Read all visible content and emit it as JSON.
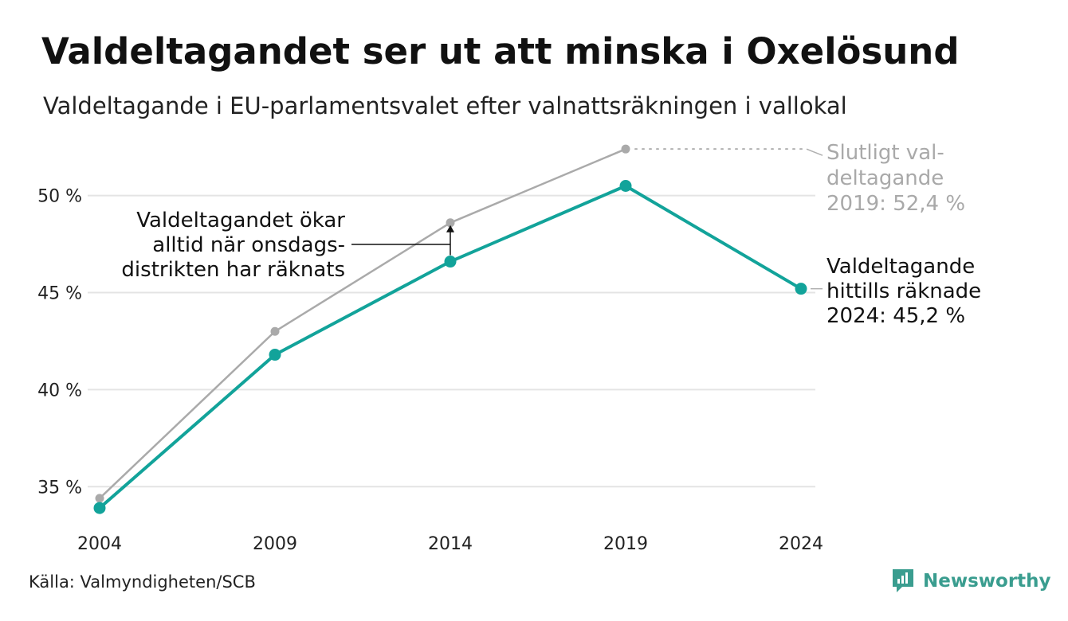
{
  "header": {
    "title": "Valdeltagandet ser ut att minska i Oxelösund",
    "subtitle": "Valdeltagande i EU-parlamentsvalet efter valnattsräkningen i vallokal"
  },
  "footer": {
    "source": "Källa: Valmyndigheten/SCB",
    "brand": "Newsworthy",
    "brand_icon": "newsworthy-logo-icon",
    "brand_color": "#3a9d8f"
  },
  "chart_data": {
    "type": "line",
    "categories": [
      "2004",
      "2009",
      "2014",
      "2019",
      "2024"
    ],
    "ylim": [
      33,
      52.9
    ],
    "yticks": [
      35,
      40,
      45,
      50
    ],
    "ytick_labels": [
      "35 %",
      "40 %",
      "45 %",
      "50 %"
    ],
    "grid": true,
    "series": [
      {
        "id": "final",
        "color": "#aaaaaa",
        "values": [
          34.4,
          43.0,
          48.6,
          52.4,
          null
        ]
      },
      {
        "id": "election_night",
        "color": "#12a39a",
        "values": [
          33.9,
          41.8,
          46.6,
          50.5,
          45.2
        ]
      }
    ],
    "annotations": {
      "final_2019": [
        "Slutligt val-",
        "deltagande",
        "2019: 52,4 %"
      ],
      "counted_2024": [
        "Valdeltagande",
        "hittills räknade",
        "2024: 45,2 %"
      ],
      "district_note": [
        "Valdeltagandet ökar",
        "alltid när onsdags-",
        "distrikten har räknats"
      ]
    }
  }
}
